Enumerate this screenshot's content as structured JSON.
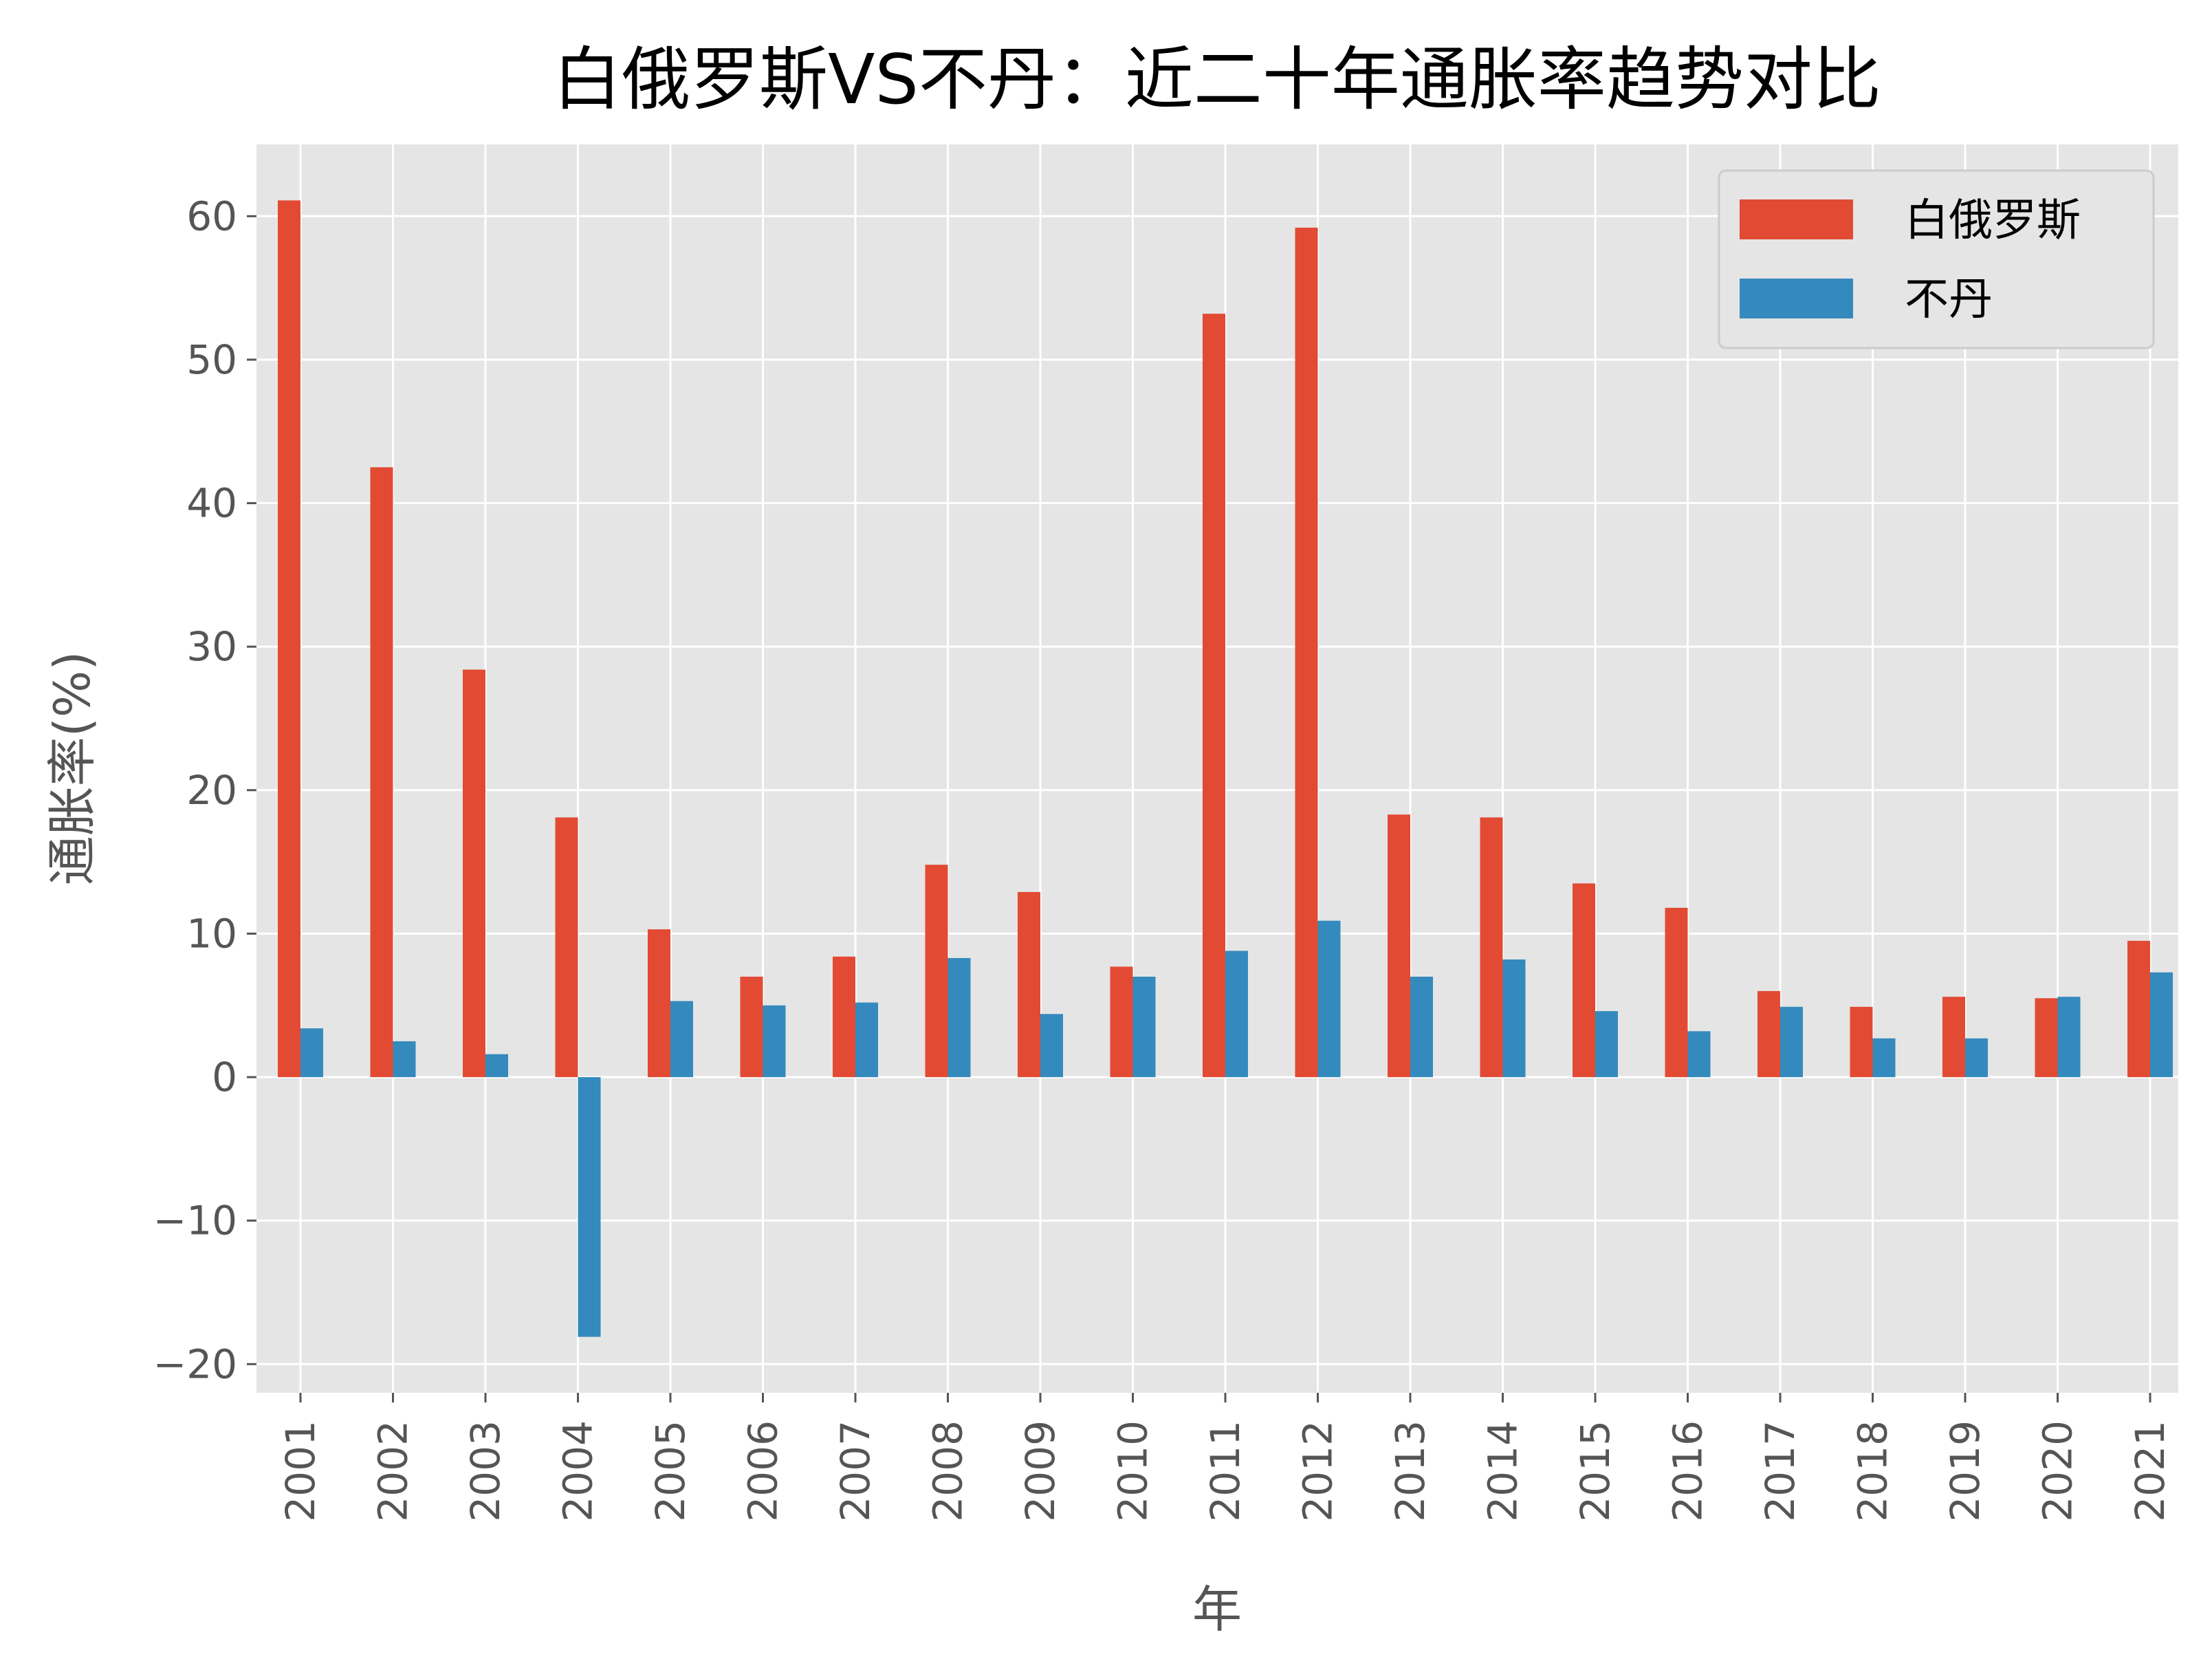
{
  "chart_data": {
    "type": "bar",
    "title": "白俄罗斯VS不丹：近二十年通胀率趋势对比",
    "xlabel": "年",
    "ylabel": "通胀率(%)",
    "categories": [
      "2001",
      "2002",
      "2003",
      "2004",
      "2005",
      "2006",
      "2007",
      "2008",
      "2009",
      "2010",
      "2011",
      "2012",
      "2013",
      "2014",
      "2015",
      "2016",
      "2017",
      "2018",
      "2019",
      "2020",
      "2021"
    ],
    "series": [
      {
        "name": "白俄罗斯",
        "color": "#e24a33",
        "values": [
          61.1,
          42.5,
          28.4,
          18.1,
          10.3,
          7.0,
          8.4,
          14.8,
          12.9,
          7.7,
          53.2,
          59.2,
          18.3,
          18.1,
          13.5,
          11.8,
          6.0,
          4.9,
          5.6,
          5.5,
          9.5
        ]
      },
      {
        "name": "不丹",
        "color": "#348abd",
        "values": [
          3.4,
          2.5,
          1.6,
          -18.1,
          5.3,
          5.0,
          5.2,
          8.3,
          4.4,
          7.0,
          8.8,
          10.9,
          7.0,
          8.2,
          4.6,
          3.2,
          4.9,
          2.7,
          2.7,
          5.6,
          7.3
        ]
      }
    ],
    "ylim": [
      -22,
      65
    ],
    "yticks": [
      -20,
      -10,
      0,
      10,
      20,
      30,
      40,
      50,
      60
    ],
    "ytick_labels": [
      "−20",
      "−10",
      "0",
      "10",
      "20",
      "30",
      "40",
      "50",
      "60"
    ],
    "grid": true,
    "legend": "top-right",
    "background": "#e5e5e5"
  }
}
